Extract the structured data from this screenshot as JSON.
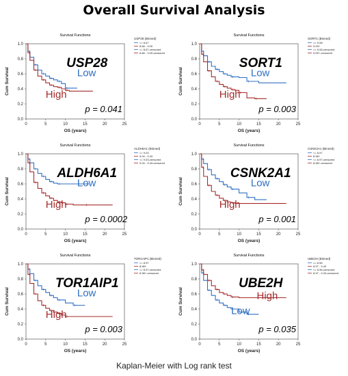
{
  "title": "Overall Survival Analysis",
  "footer": "Kaplan-Meier with Log rank test",
  "colors": {
    "low": "#2E6FC2",
    "high": "#A52A2A"
  },
  "chart_data": [
    {
      "type": "line",
      "title": "Survival Functions",
      "gene": "USP28",
      "xlabel": "OS (years)",
      "ylabel": "Cum Survival",
      "xlim": [
        0,
        25
      ],
      "ylim": [
        0,
        1.0
      ],
      "xticks": [
        0,
        5,
        10,
        15,
        20,
        25
      ],
      "yticks": [
        "0.0",
        "0.2",
        "0.4",
        "0.6",
        "0.8",
        "1.0"
      ],
      "legend_title": "USP28 (Binned)",
      "legend": [
        "<= 8.67",
        "8.68 - 9.09",
        "<= 8.67-censored",
        "8.68 - 9.09-censored"
      ],
      "pvalue": "p = 0.041",
      "label_low": "Low",
      "label_high": "High",
      "high_is_upper": false,
      "series": [
        {
          "name": "Low",
          "x": [
            0,
            0.5,
            1,
            2,
            3,
            4,
            5,
            6,
            7,
            8,
            9,
            10,
            13
          ],
          "y": [
            1,
            0.9,
            0.82,
            0.72,
            0.65,
            0.6,
            0.57,
            0.54,
            0.52,
            0.5,
            0.47,
            0.41,
            0.41
          ]
        },
        {
          "name": "High",
          "x": [
            0,
            0.5,
            1,
            2,
            3,
            4,
            5,
            6,
            7,
            8,
            9,
            10,
            11,
            17
          ],
          "y": [
            1,
            0.88,
            0.78,
            0.65,
            0.57,
            0.52,
            0.48,
            0.45,
            0.43,
            0.42,
            0.4,
            0.38,
            0.37,
            0.37
          ]
        }
      ]
    },
    {
      "type": "line",
      "title": "Survival Functions",
      "gene": "SORT1",
      "xlabel": "OS (years)",
      "ylabel": "Cum Survival",
      "xlim": [
        0,
        25
      ],
      "ylim": [
        0,
        1.0
      ],
      "xticks": [
        0,
        5,
        10,
        15,
        20,
        25
      ],
      "yticks": [
        "0.0",
        "0.2",
        "0.4",
        "0.6",
        "0.8",
        "1.0"
      ],
      "legend_title": "SORT1 (Binned)",
      "legend": [
        "<= 9.08",
        "9.09+",
        "<= 9.08-censored",
        "9.09+-censored"
      ],
      "pvalue": "p = 0.003",
      "label_low": "Low",
      "label_high": "High",
      "high_is_upper": false,
      "series": [
        {
          "name": "Low",
          "x": [
            0,
            0.5,
            1,
            2,
            3,
            4,
            5,
            6,
            7,
            8,
            10,
            12,
            15,
            22
          ],
          "y": [
            1,
            0.9,
            0.84,
            0.76,
            0.7,
            0.66,
            0.63,
            0.6,
            0.58,
            0.56,
            0.55,
            0.5,
            0.48,
            0.48
          ]
        },
        {
          "name": "High",
          "x": [
            0,
            0.5,
            1,
            2,
            3,
            4,
            5,
            6,
            7,
            8,
            9,
            10,
            12,
            14,
            17
          ],
          "y": [
            1,
            0.86,
            0.76,
            0.64,
            0.56,
            0.5,
            0.46,
            0.43,
            0.41,
            0.39,
            0.38,
            0.35,
            0.28,
            0.27,
            0.27
          ]
        }
      ]
    },
    {
      "type": "line",
      "title": "Survival Functions",
      "gene": "ALDH6A1",
      "xlabel": "OS (years)",
      "ylabel": "Cum Survival",
      "xlim": [
        0,
        25
      ],
      "ylim": [
        0,
        1.0
      ],
      "xticks": [
        0,
        5,
        10,
        15,
        20,
        25
      ],
      "yticks": [
        "0.0",
        "0.2",
        "0.4",
        "0.6",
        "0.8",
        "1.0"
      ],
      "legend_title": "ALDH6A1 (Binned)",
      "legend": [
        "<= 9.03",
        "9.04 - 9.43",
        "<= 9.03-censored",
        "9.04 - 9.43-censored"
      ],
      "pvalue": "p = 0.0002",
      "label_low": "Low",
      "label_high": "High",
      "high_is_upper": false,
      "series": [
        {
          "name": "Low",
          "x": [
            0,
            0.5,
            1,
            2,
            3,
            4,
            5,
            6,
            7,
            8,
            12,
            16
          ],
          "y": [
            1,
            0.93,
            0.88,
            0.8,
            0.74,
            0.7,
            0.66,
            0.63,
            0.61,
            0.6,
            0.6,
            0.6
          ]
        },
        {
          "name": "High",
          "x": [
            0,
            0.5,
            1,
            2,
            3,
            4,
            5,
            6,
            7,
            8,
            9,
            10,
            12,
            15,
            22
          ],
          "y": [
            1,
            0.88,
            0.76,
            0.62,
            0.54,
            0.48,
            0.44,
            0.41,
            0.38,
            0.36,
            0.35,
            0.33,
            0.32,
            0.32,
            0.32
          ]
        }
      ]
    },
    {
      "type": "line",
      "title": "Survival Functions",
      "gene": "CSNK2A1",
      "xlabel": "OS (years)",
      "ylabel": "Cum Survival",
      "xlim": [
        0,
        25
      ],
      "ylim": [
        0,
        1.0
      ],
      "xticks": [
        0,
        5,
        10,
        15,
        20,
        25
      ],
      "yticks": [
        "0.0",
        "0.2",
        "0.4",
        "0.6",
        "0.8",
        "1.0"
      ],
      "legend_title": "CSNK2A1 (Binned)",
      "legend": [
        "<= 8.97",
        "8.98+",
        "<= 8.97-censored",
        "8.98+-censored"
      ],
      "pvalue": "p = 0.001",
      "label_low": "Low",
      "label_high": "High",
      "high_is_upper": false,
      "series": [
        {
          "name": "Low",
          "x": [
            0,
            0.5,
            1,
            2,
            3,
            4,
            5,
            6,
            7,
            8,
            10,
            12,
            14,
            17
          ],
          "y": [
            1,
            0.93,
            0.87,
            0.79,
            0.72,
            0.67,
            0.63,
            0.59,
            0.56,
            0.53,
            0.48,
            0.42,
            0.39,
            0.39
          ]
        },
        {
          "name": "High",
          "x": [
            0,
            0.5,
            1,
            2,
            3,
            4,
            5,
            6,
            7,
            8,
            9,
            22
          ],
          "y": [
            1,
            0.82,
            0.7,
            0.58,
            0.5,
            0.45,
            0.41,
            0.38,
            0.36,
            0.35,
            0.34,
            0.34
          ]
        }
      ]
    },
    {
      "type": "line",
      "title": "Survival Functions",
      "gene": "TOR1AIP1",
      "xlabel": "OS (years)",
      "ylabel": "Cum Survival",
      "xlim": [
        0,
        25
      ],
      "ylim": [
        0,
        1.0
      ],
      "xticks": [
        0,
        5,
        10,
        15,
        20,
        25
      ],
      "yticks": [
        "0.0",
        "0.2",
        "0.4",
        "0.6",
        "0.8",
        "1.0"
      ],
      "legend_title": "TOR1AIP1 (Binned)",
      "legend": [
        "<= 8.97",
        "8.98+",
        "<= 8.97-censored",
        "8.98+-censored"
      ],
      "pvalue": "p = 0.003",
      "label_low": "Low",
      "label_high": "High",
      "high_is_upper": false,
      "series": [
        {
          "name": "Low",
          "x": [
            0,
            0.5,
            1,
            2,
            3,
            4,
            5,
            6,
            7,
            8,
            10,
            12,
            15
          ],
          "y": [
            1,
            0.93,
            0.87,
            0.78,
            0.71,
            0.66,
            0.62,
            0.58,
            0.55,
            0.52,
            0.48,
            0.45,
            0.45
          ]
        },
        {
          "name": "High",
          "x": [
            0,
            0.5,
            1,
            2,
            3,
            4,
            5,
            6,
            7,
            8,
            9,
            10,
            22
          ],
          "y": [
            1,
            0.86,
            0.74,
            0.6,
            0.51,
            0.45,
            0.41,
            0.38,
            0.36,
            0.34,
            0.32,
            0.3,
            0.3
          ]
        }
      ]
    },
    {
      "type": "line",
      "title": "Survival Functions",
      "gene": "UBE2H",
      "xlabel": "OS (years)",
      "ylabel": "Cum Survival",
      "xlim": [
        0,
        25
      ],
      "ylim": [
        0,
        1.0
      ],
      "xticks": [
        0,
        5,
        10,
        15,
        20,
        25
      ],
      "yticks": [
        "0.0",
        "0.2",
        "0.4",
        "0.6",
        "0.8",
        "1.0"
      ],
      "legend_title": "UBE2H (Binned)",
      "legend": [
        "<= 8.96",
        "8.97 - 9.43",
        "<= 8.96-censored",
        "8.97 - 9.43-censored"
      ],
      "pvalue": "p = 0.035",
      "label_low": "Low",
      "label_high": "High",
      "high_is_upper": true,
      "series": [
        {
          "name": "Low",
          "x": [
            0,
            0.5,
            1,
            2,
            3,
            4,
            5,
            6,
            7,
            8,
            10,
            12,
            15
          ],
          "y": [
            1,
            0.88,
            0.78,
            0.65,
            0.58,
            0.52,
            0.48,
            0.45,
            0.42,
            0.4,
            0.36,
            0.33,
            0.33
          ]
        },
        {
          "name": "High",
          "x": [
            0,
            0.5,
            1,
            2,
            3,
            4,
            5,
            6,
            7,
            8,
            10,
            22
          ],
          "y": [
            1,
            0.92,
            0.86,
            0.78,
            0.71,
            0.66,
            0.62,
            0.6,
            0.58,
            0.56,
            0.55,
            0.55
          ]
        }
      ]
    }
  ]
}
